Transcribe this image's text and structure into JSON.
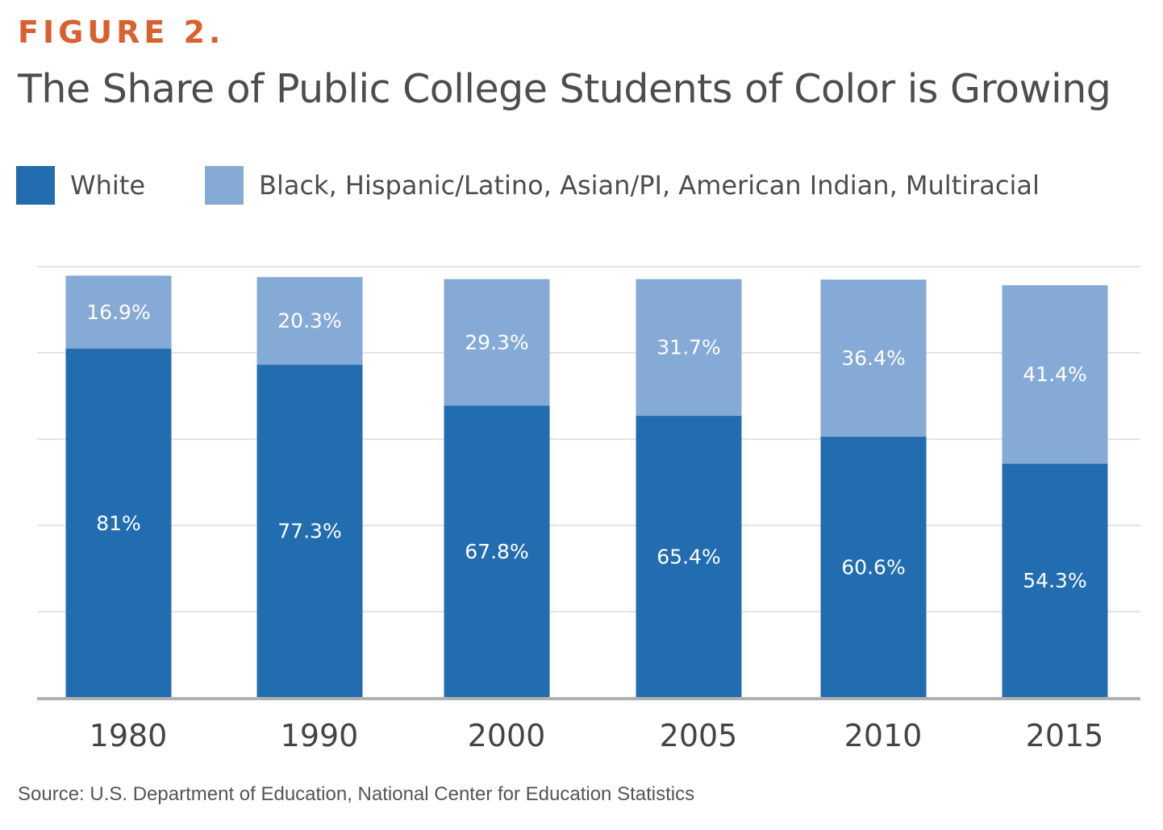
{
  "figure_label": "FIGURE 2.",
  "source": "Source: U.S. Department of Education, National Center for Education Statistics",
  "colors": {
    "accent": "#d8612f",
    "title": "#4d4d4d",
    "white_series": "#226db0",
    "poc_series": "#86aad6",
    "gridline": "#c8c8c8",
    "baseline": "#b0b0b0",
    "bar_label": "#ffffff",
    "tick_label": "#444444"
  },
  "chart_data": {
    "type": "bar",
    "stacked": true,
    "title": "The Share of Public College Students of Color is Growing",
    "xlabel": "",
    "ylabel": "",
    "categories": [
      "1980",
      "1990",
      "2000",
      "2005",
      "2010",
      "2015"
    ],
    "series": [
      {
        "name": "White",
        "values": [
          81,
          77.3,
          67.8,
          65.4,
          60.6,
          54.3
        ],
        "labels": [
          "81%",
          "77.3%",
          "67.8%",
          "65.4%",
          "60.6%",
          "54.3%"
        ]
      },
      {
        "name": "Black, Hispanic/Latino, Asian/PI, American Indian, Multiracial",
        "values": [
          16.9,
          20.3,
          29.3,
          31.7,
          36.4,
          41.4
        ],
        "labels": [
          "16.9%",
          "20.3%",
          "29.3%",
          "31.7%",
          "36.4%",
          "41.4%"
        ]
      }
    ],
    "ylim": [
      0,
      100
    ],
    "grid": true,
    "legend_position": "top-left"
  }
}
